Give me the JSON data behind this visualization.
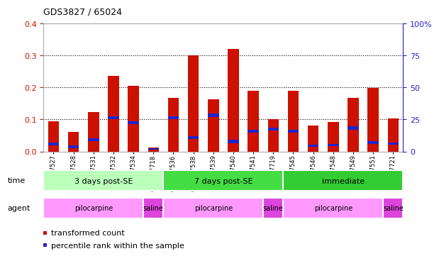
{
  "title": "GDS3827 / 65024",
  "samples": [
    "GSM367527",
    "GSM367528",
    "GSM367531",
    "GSM367532",
    "GSM367534",
    "GSM367718",
    "GSM367536",
    "GSM367538",
    "GSM367539",
    "GSM367540",
    "GSM367541",
    "GSM367719",
    "GSM367545",
    "GSM367546",
    "GSM367548",
    "GSM367549",
    "GSM367551",
    "GSM367721"
  ],
  "red_values": [
    0.095,
    0.062,
    0.122,
    0.235,
    0.205,
    0.012,
    0.168,
    0.3,
    0.163,
    0.32,
    0.19,
    0.1,
    0.19,
    0.082,
    0.092,
    0.168,
    0.198,
    0.103
  ],
  "blue_values": [
    0.018,
    0.01,
    0.033,
    0.1,
    0.085,
    0.006,
    0.1,
    0.038,
    0.108,
    0.026,
    0.058,
    0.065,
    0.058,
    0.014,
    0.016,
    0.068,
    0.024,
    0.02
  ],
  "blue_heights": [
    0.01,
    0.008,
    0.008,
    0.01,
    0.01,
    0.005,
    0.01,
    0.01,
    0.01,
    0.01,
    0.01,
    0.01,
    0.01,
    0.008,
    0.008,
    0.01,
    0.008,
    0.008
  ],
  "ylim_left": [
    0,
    0.4
  ],
  "ylim_right": [
    0,
    100
  ],
  "yticks_left": [
    0,
    0.1,
    0.2,
    0.3,
    0.4
  ],
  "yticks_right": [
    0,
    25,
    50,
    75,
    100
  ],
  "time_groups": [
    {
      "label": "3 days post-SE",
      "start": 0,
      "end": 5,
      "color": "#bbffbb"
    },
    {
      "label": "7 days post-SE",
      "start": 6,
      "end": 11,
      "color": "#44dd44"
    },
    {
      "label": "immediate",
      "start": 12,
      "end": 17,
      "color": "#33cc33"
    }
  ],
  "agent_groups": [
    {
      "label": "pilocarpine",
      "start": 0,
      "end": 4,
      "color": "#ff99ff"
    },
    {
      "label": "saline",
      "start": 5,
      "end": 5,
      "color": "#dd44dd"
    },
    {
      "label": "pilocarpine",
      "start": 6,
      "end": 10,
      "color": "#ff99ff"
    },
    {
      "label": "saline",
      "start": 11,
      "end": 11,
      "color": "#dd44dd"
    },
    {
      "label": "pilocarpine",
      "start": 12,
      "end": 16,
      "color": "#ff99ff"
    },
    {
      "label": "saline",
      "start": 17,
      "end": 17,
      "color": "#dd44dd"
    }
  ],
  "red_color": "#cc1100",
  "blue_color": "#2222cc",
  "bar_width": 0.55,
  "grid_color": "#000000",
  "bg_color": "#ffffff",
  "tick_label_color_left": "#cc1100",
  "tick_label_color_right": "#2222cc",
  "legend_items": [
    {
      "label": "transformed count",
      "color": "#cc1100"
    },
    {
      "label": "percentile rank within the sample",
      "color": "#2222cc"
    }
  ]
}
